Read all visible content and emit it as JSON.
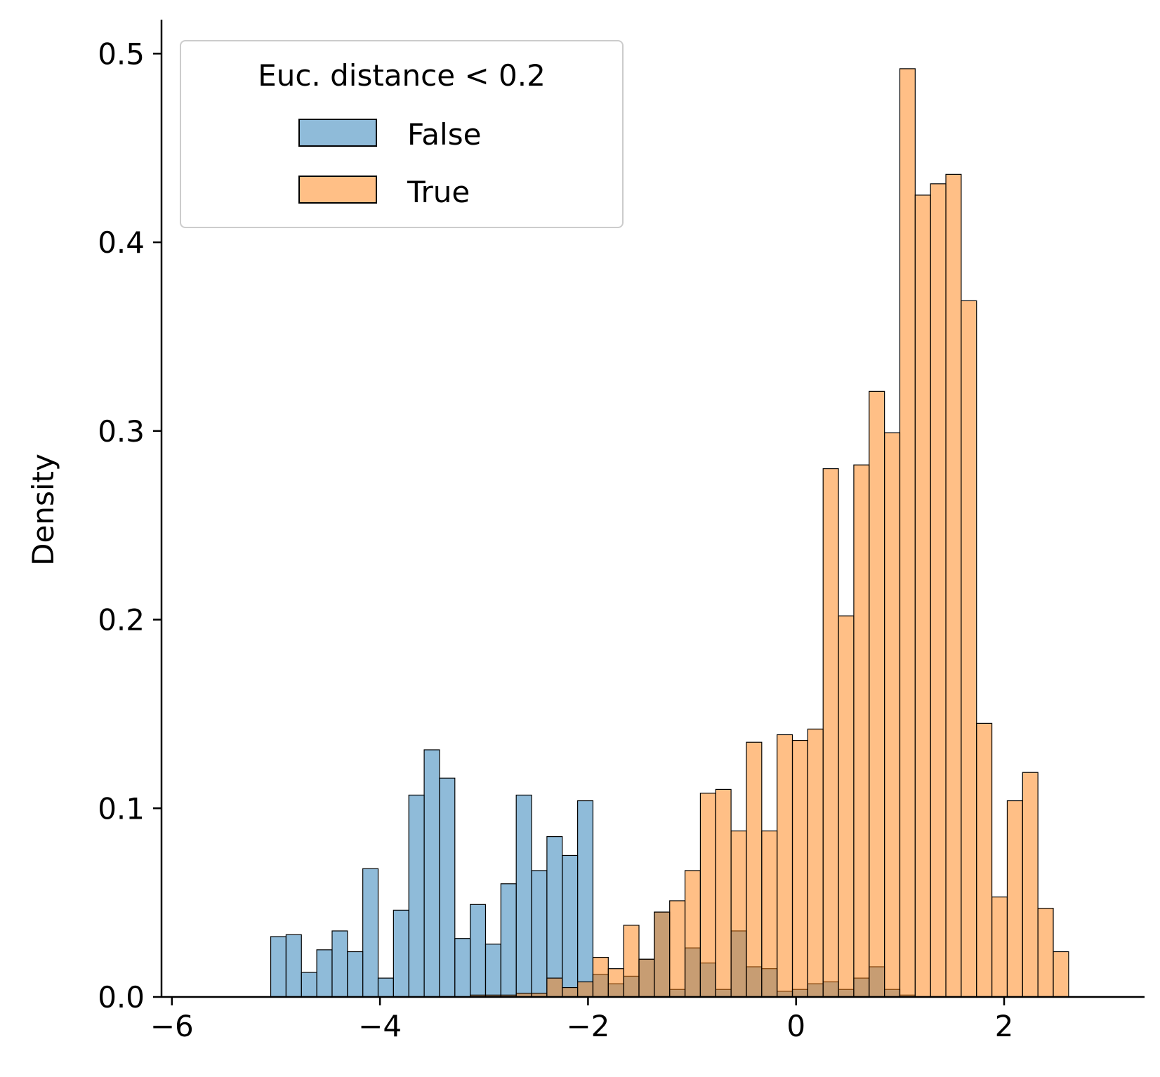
{
  "chart_data": {
    "type": "bar",
    "title": "",
    "xlabel": "",
    "ylabel": "Density",
    "xlim": [
      -6.1,
      3.35
    ],
    "ylim": [
      0,
      0.518
    ],
    "xticks": [
      -6,
      -4,
      -2,
      0,
      2
    ],
    "xtick_labels": [
      "−6",
      "−4",
      "−2",
      "0",
      "2"
    ],
    "yticks": [
      0.0,
      0.1,
      0.2,
      0.3,
      0.4,
      0.5
    ],
    "ytick_labels": [
      "0.0",
      "0.1",
      "0.2",
      "0.3",
      "0.4",
      "0.5"
    ],
    "grid": false,
    "legend": {
      "title": "Euc. distance < 0.2",
      "placement": "top-left",
      "entries": [
        "False",
        "True"
      ]
    },
    "bin_start": -5.05,
    "bin_width": 0.1475,
    "series": [
      {
        "name": "False",
        "color": "#1f77b4",
        "values": [
          0.032,
          0.033,
          0.013,
          0.025,
          0.035,
          0.024,
          0.068,
          0.01,
          0.046,
          0.107,
          0.131,
          0.116,
          0.031,
          0.049,
          0.028,
          0.06,
          0.107,
          0.067,
          0.085,
          0.075,
          0.104,
          0.012,
          0.007,
          0.011,
          0.02,
          0.045,
          0.004,
          0.026,
          0.018,
          0.004,
          0.035,
          0.016,
          0.015,
          0.003,
          0.004,
          0.007,
          0.008,
          0.004,
          0.01,
          0.016,
          0.004,
          0.001,
          0,
          0,
          0,
          0,
          0,
          0,
          0,
          0,
          0,
          0,
          0,
          0,
          0
        ]
      },
      {
        "name": "True",
        "color": "#ff7f0e",
        "values": [
          0,
          0,
          0,
          0,
          0,
          0,
          0,
          0,
          0,
          0,
          0,
          0,
          0,
          0.001,
          0.001,
          0.001,
          0.002,
          0.002,
          0.01,
          0.005,
          0.008,
          0.021,
          0.015,
          0.038,
          0.02,
          0.045,
          0.051,
          0.067,
          0.108,
          0.11,
          0.088,
          0.135,
          0.088,
          0.139,
          0.136,
          0.142,
          0.28,
          0.202,
          0.282,
          0.321,
          0.299,
          0.492,
          0.425,
          0.431,
          0.436,
          0.369,
          0.145,
          0.053,
          0.104,
          0.119,
          0.047,
          0.024,
          0,
          0,
          0
        ]
      }
    ]
  }
}
